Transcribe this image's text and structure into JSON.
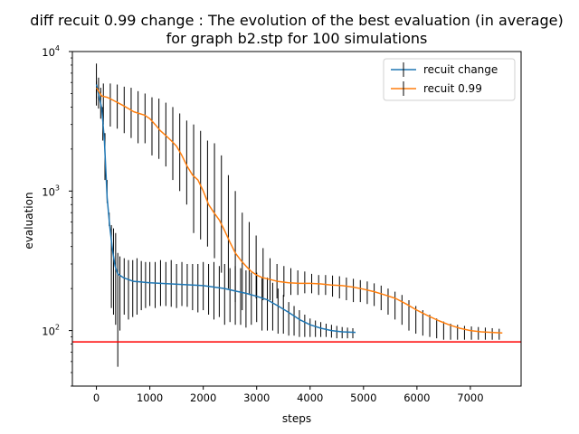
{
  "chart_data": {
    "type": "line",
    "title_line1": "diff recuit 0.99 change : The evolution of the best evaluation (in average)",
    "title_line2": "for graph b2.stp for 100 simulations",
    "xlabel": "steps",
    "ylabel": "evaluation",
    "xlim": [
      -450,
      7950
    ],
    "ylim": [
      40,
      10000
    ],
    "yscale": "log",
    "x_ticks": [
      0,
      1000,
      2000,
      3000,
      4000,
      5000,
      6000,
      7000
    ],
    "x_tick_labels": [
      "0",
      "1000",
      "2000",
      "3000",
      "4000",
      "5000",
      "6000",
      "7000"
    ],
    "y_ticks": [
      100,
      1000,
      10000
    ],
    "y_tick_labels": [
      {
        "base": "10",
        "exp": "2"
      },
      {
        "base": "10",
        "exp": "3"
      },
      {
        "base": "10",
        "exp": "4"
      }
    ],
    "legend_position": "top-right",
    "reference_line": {
      "y": 83,
      "color": "#ff0000"
    },
    "series": [
      {
        "name": "recuit change",
        "color": "#1f77b4",
        "x": [
          0,
          50,
          100,
          150,
          200,
          250,
          300,
          350,
          400,
          500,
          600,
          700,
          800,
          900,
          1000,
          1200,
          1400,
          1600,
          1800,
          2000,
          2200,
          2400,
          2600,
          2800,
          3000,
          3200,
          3400,
          3600,
          3800,
          4000,
          4200,
          4400,
          4600,
          4850
        ],
        "y": [
          5800,
          4800,
          3900,
          2300,
          900,
          560,
          380,
          290,
          255,
          240,
          232,
          225,
          224,
          222,
          220,
          218,
          216,
          214,
          212,
          210,
          205,
          200,
          192,
          185,
          176,
          166,
          150,
          135,
          120,
          110,
          104,
          100,
          98,
          97
        ],
        "errorbars": {
          "x": [
            0,
            40,
            80,
            120,
            160,
            200,
            240,
            280,
            320,
            360,
            400,
            440,
            520,
            600,
            680,
            760,
            840,
            920,
            1000,
            1100,
            1200,
            1300,
            1400,
            1500,
            1600,
            1700,
            1800,
            1900,
            2000,
            2100,
            2200,
            2300,
            2400,
            2500,
            2600,
            2700,
            2800,
            2900,
            3000,
            3100,
            3200,
            3300,
            3400,
            3500,
            3600,
            3700,
            3800,
            3900,
            4000,
            4100,
            4200,
            4300,
            4400,
            4500,
            4600,
            4700,
            4800
          ],
          "low": [
            4100,
            3900,
            3300,
            2300,
            1200,
            820,
            560,
            145,
            130,
            110,
            55,
            100,
            130,
            120,
            125,
            130,
            140,
            145,
            150,
            145,
            150,
            150,
            148,
            145,
            150,
            148,
            140,
            135,
            140,
            130,
            120,
            125,
            110,
            115,
            110,
            110,
            105,
            110,
            115,
            100,
            100,
            100,
            95,
            95,
            92,
            92,
            90,
            90,
            90,
            90,
            90,
            90,
            89,
            88,
            88,
            88,
            88
          ],
          "high": [
            8200,
            6500,
            5500,
            4000,
            2600,
            1200,
            700,
            570,
            540,
            500,
            360,
            340,
            330,
            320,
            320,
            330,
            315,
            310,
            310,
            310,
            320,
            310,
            320,
            300,
            310,
            300,
            300,
            300,
            310,
            300,
            310,
            290,
            300,
            280,
            290,
            280,
            270,
            260,
            260,
            240,
            240,
            220,
            200,
            180,
            160,
            150,
            140,
            130,
            122,
            118,
            115,
            112,
            110,
            108,
            106,
            105,
            104
          ]
        }
      },
      {
        "name": "recuit 0.99",
        "color": "#ff7f0e",
        "x": [
          0,
          100,
          200,
          300,
          400,
          500,
          600,
          700,
          800,
          900,
          1000,
          1100,
          1200,
          1300,
          1400,
          1500,
          1600,
          1700,
          1800,
          1900,
          2000,
          2100,
          2200,
          2300,
          2400,
          2500,
          2600,
          2700,
          2800,
          2900,
          3000,
          3100,
          3200,
          3400,
          3600,
          3800,
          4000,
          4200,
          4400,
          4600,
          4800,
          5000,
          5200,
          5400,
          5600,
          5800,
          6000,
          6200,
          6400,
          6600,
          6800,
          7000,
          7200,
          7400,
          7600
        ],
        "y": [
          5500,
          4800,
          4700,
          4500,
          4300,
          4100,
          3900,
          3700,
          3600,
          3500,
          3300,
          3000,
          2700,
          2500,
          2300,
          2100,
          1800,
          1500,
          1300,
          1200,
          1000,
          800,
          700,
          620,
          520,
          430,
          360,
          320,
          290,
          265,
          250,
          240,
          235,
          225,
          220,
          218,
          218,
          216,
          212,
          210,
          205,
          198,
          190,
          180,
          170,
          155,
          140,
          128,
          118,
          110,
          104,
          100,
          98,
          97,
          96
        ],
        "errorbars": {
          "x": [
            0,
            130,
            260,
            390,
            520,
            650,
            780,
            910,
            1040,
            1170,
            1300,
            1430,
            1560,
            1690,
            1820,
            1950,
            2080,
            2210,
            2340,
            2470,
            2600,
            2730,
            2860,
            2990,
            3120,
            3250,
            3380,
            3510,
            3640,
            3770,
            3900,
            4030,
            4160,
            4290,
            4420,
            4550,
            4680,
            4810,
            4940,
            5070,
            5200,
            5330,
            5460,
            5590,
            5720,
            5850,
            5980,
            6110,
            6240,
            6370,
            6500,
            6630,
            6760,
            6890,
            7020,
            7150,
            7280,
            7410,
            7540
          ],
          "low": [
            4600,
            3000,
            2900,
            2800,
            2600,
            2400,
            2200,
            2200,
            1800,
            1700,
            1500,
            1200,
            1000,
            800,
            500,
            450,
            400,
            330,
            260,
            200,
            160,
            140,
            180,
            170,
            165,
            165,
            170,
            175,
            180,
            180,
            185,
            185,
            180,
            180,
            175,
            170,
            165,
            160,
            160,
            155,
            150,
            140,
            130,
            120,
            110,
            100,
            95,
            92,
            90,
            88,
            86,
            86,
            86,
            86,
            86,
            86,
            86,
            86,
            86
          ],
          "high": [
            6100,
            5900,
            5900,
            5800,
            5600,
            5500,
            5200,
            5000,
            4700,
            4600,
            4300,
            4000,
            3600,
            3200,
            3000,
            2700,
            2300,
            2200,
            1800,
            1300,
            1000,
            700,
            600,
            480,
            390,
            330,
            300,
            290,
            280,
            270,
            265,
            255,
            250,
            250,
            248,
            245,
            240,
            235,
            230,
            225,
            218,
            210,
            200,
            190,
            180,
            165,
            150,
            140,
            130,
            122,
            116,
            112,
            110,
            108,
            107,
            106,
            105,
            104,
            103
          ]
        }
      }
    ]
  }
}
